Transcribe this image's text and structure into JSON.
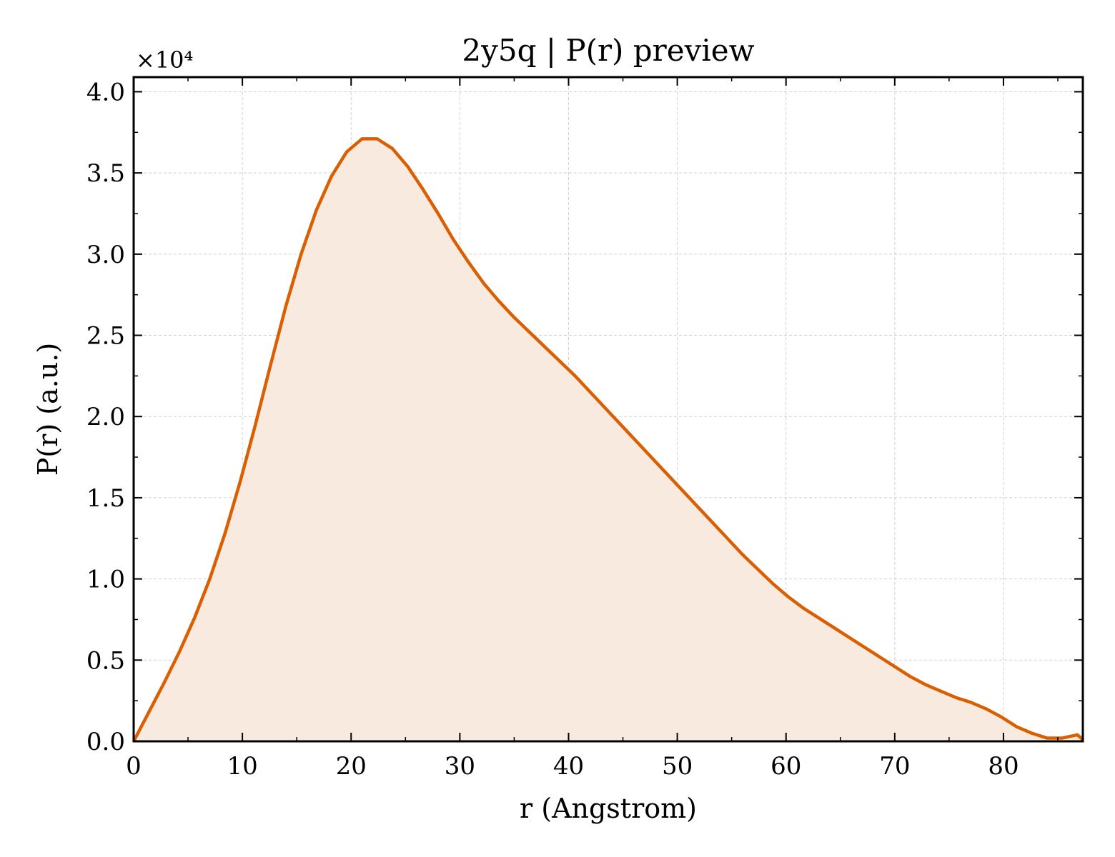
{
  "chart_data": {
    "type": "area",
    "title": "2y5q | P(r) preview",
    "xlabel": "r (Angstrom)",
    "ylabel": "P(r) (a.u.)",
    "y_multiplier": "×10⁴",
    "xlim": [
      0,
      87.3
    ],
    "ylim": [
      0,
      4.09
    ],
    "xticks": [
      0,
      10,
      20,
      30,
      40,
      50,
      60,
      70,
      80
    ],
    "xtick_labels": [
      "0",
      "10",
      "20",
      "30",
      "40",
      "50",
      "60",
      "70",
      "80"
    ],
    "yticks": [
      0,
      0.5,
      1.0,
      1.5,
      2.0,
      2.5,
      3.0,
      3.5,
      4.0
    ],
    "ytick_labels": [
      "0.0",
      "0.5",
      "1.0",
      "1.5",
      "2.0",
      "2.5",
      "3.0",
      "3.5",
      "4.0"
    ],
    "grid": true,
    "line_color": "#d95f02",
    "fill_color": "#f9eadf",
    "series": [
      {
        "x": [
          0,
          1.4,
          2.8,
          4.2,
          5.6,
          7.0,
          8.4,
          9.8,
          11.2,
          12.6,
          14.0,
          15.4,
          16.8,
          18.2,
          19.6,
          21.0,
          22.4,
          23.8,
          25.2,
          26.6,
          28.0,
          29.4,
          30.8,
          32.2,
          33.6,
          35.0,
          36.4,
          37.8,
          39.2,
          40.6,
          42.0,
          43.4,
          44.8,
          46.2,
          47.6,
          49.0,
          50.4,
          51.8,
          53.2,
          54.6,
          56.0,
          57.4,
          58.8,
          60.2,
          61.6,
          63.0,
          64.4,
          65.8,
          67.2,
          68.6,
          70.0,
          71.4,
          72.8,
          74.2,
          75.6,
          77.0,
          78.4,
          79.8,
          81.2,
          82.6,
          84.0,
          85.4,
          86.8,
          87.3
        ],
        "y": [
          0.0,
          0.18,
          0.36,
          0.55,
          0.76,
          1.0,
          1.28,
          1.6,
          1.95,
          2.32,
          2.68,
          3.0,
          3.27,
          3.48,
          3.63,
          3.71,
          3.71,
          3.65,
          3.54,
          3.4,
          3.25,
          3.09,
          2.95,
          2.82,
          2.71,
          2.61,
          2.52,
          2.43,
          2.34,
          2.25,
          2.15,
          2.05,
          1.95,
          1.85,
          1.75,
          1.65,
          1.55,
          1.45,
          1.35,
          1.25,
          1.15,
          1.06,
          0.97,
          0.89,
          0.82,
          0.76,
          0.7,
          0.64,
          0.58,
          0.52,
          0.46,
          0.4,
          0.35,
          0.31,
          0.27,
          0.24,
          0.2,
          0.15,
          0.09,
          0.05,
          0.02,
          0.02,
          0.04,
          0.01
        ]
      }
    ]
  }
}
